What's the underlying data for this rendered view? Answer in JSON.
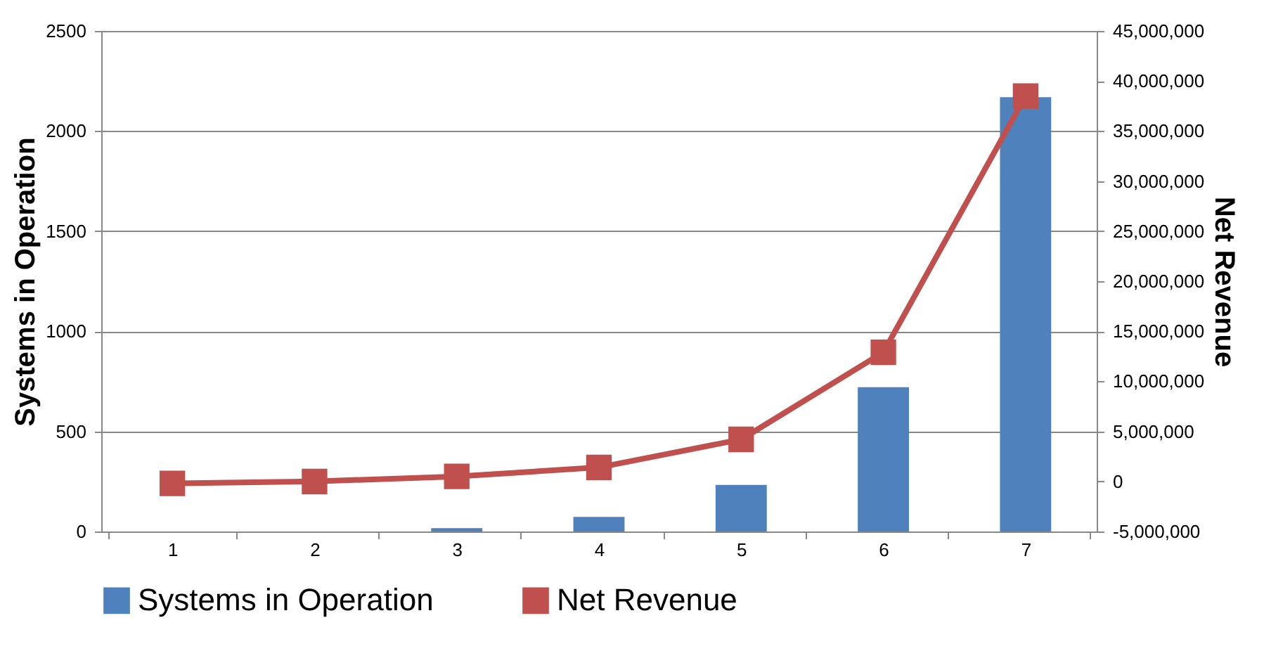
{
  "chart_data": {
    "type": "bar",
    "xlabel": null,
    "ylabel": "Systems in Operation",
    "y2label": "Net Revenue",
    "categories": [
      "1",
      "2",
      "3",
      "4",
      "5",
      "6",
      "7"
    ],
    "series": [
      {
        "name": "Systems in Operation",
        "color": "#4f81bd",
        "values": [
          0,
          0,
          17,
          73,
          233,
          721,
          2169
        ]
      },
      {
        "name": "Net Revenue",
        "type": "line",
        "axis": "y2",
        "color": "#c0504d",
        "marker": "square",
        "values": [
          -200000,
          0,
          500000,
          1400000,
          4200000,
          12900000,
          38500000
        ]
      }
    ],
    "ylim": [
      0,
      2500
    ],
    "yticks": [
      0,
      500,
      1000,
      1500,
      2000,
      2500
    ],
    "y2lim": [
      -5000000,
      45000000
    ],
    "y2ticks": [
      {
        "value": -5000000,
        "label": "-5,000,000"
      },
      {
        "value": 0,
        "label": "0"
      },
      {
        "value": 5000000,
        "label": "5,000,000"
      },
      {
        "value": 10000000,
        "label": "10,000,000"
      },
      {
        "value": 15000000,
        "label": "15,000,000"
      },
      {
        "value": 20000000,
        "label": "20,000,000"
      },
      {
        "value": 25000000,
        "label": "25,000,000"
      },
      {
        "value": 30000000,
        "label": "30,000,000"
      },
      {
        "value": 35000000,
        "label": "35,000,000"
      },
      {
        "value": 40000000,
        "label": "40,000,000"
      },
      {
        "value": 45000000,
        "label": "45,000,000"
      }
    ],
    "grid": "y",
    "legend": "bottom"
  }
}
